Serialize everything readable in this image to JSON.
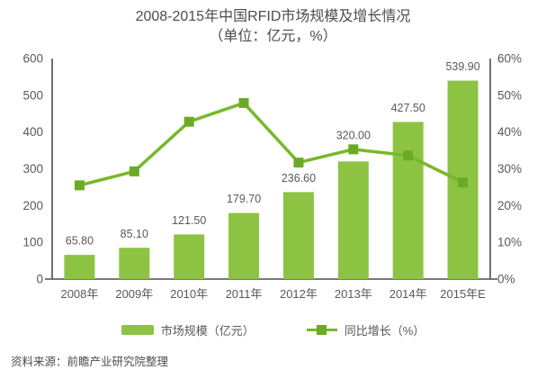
{
  "title": {
    "line1": "2008-2015年中国RFID市场规模及增长情况",
    "line2": "（单位：亿元，%）"
  },
  "chart_data": {
    "type": "bar",
    "subtype": "bar-line-combo",
    "title": "2008-2015年中国RFID市场规模及增长情况（单位：亿元，%）",
    "categories": [
      "2008年",
      "2009年",
      "2010年",
      "2011年",
      "2012年",
      "2013年",
      "2014年",
      "2015年E"
    ],
    "series": [
      {
        "name": "市场规模（亿元）",
        "type": "bar",
        "axis": "left",
        "values": [
          65.8,
          85.1,
          121.5,
          179.7,
          236.6,
          320.0,
          427.5,
          539.9
        ],
        "labels": [
          "65.80",
          "85.10",
          "121.50",
          "179.70",
          "236.60",
          "320.00",
          "427.50",
          "539.90"
        ]
      },
      {
        "name": "同比增长（%）",
        "type": "line",
        "axis": "right",
        "values": [
          25.5,
          29.3,
          42.8,
          47.9,
          31.7,
          35.3,
          33.6,
          26.3
        ]
      }
    ],
    "left_axis": {
      "min": 0,
      "max": 600,
      "ticks": [
        "0",
        "100",
        "200",
        "300",
        "400",
        "500",
        "600"
      ]
    },
    "right_axis": {
      "min": 0,
      "max": 60,
      "ticks": [
        "0%",
        "10%",
        "20%",
        "30%",
        "40%",
        "50%",
        "60%"
      ]
    },
    "grid": false,
    "legend_position": "bottom"
  },
  "legend": {
    "items": [
      {
        "label": "市场规模（亿元）",
        "swatch": "bar"
      },
      {
        "label": "同比增长（%）",
        "swatch": "line"
      }
    ]
  },
  "footer": {
    "source": "资料来源：前瞻产业研究院整理"
  },
  "colors": {
    "bar": "#8dc343",
    "line": "#79b829",
    "marker": "#6baa26",
    "axis_line": "#4d4d4d",
    "tick_text": "#595959",
    "label_text": "#595959",
    "title_text": "#4d4d4d"
  }
}
